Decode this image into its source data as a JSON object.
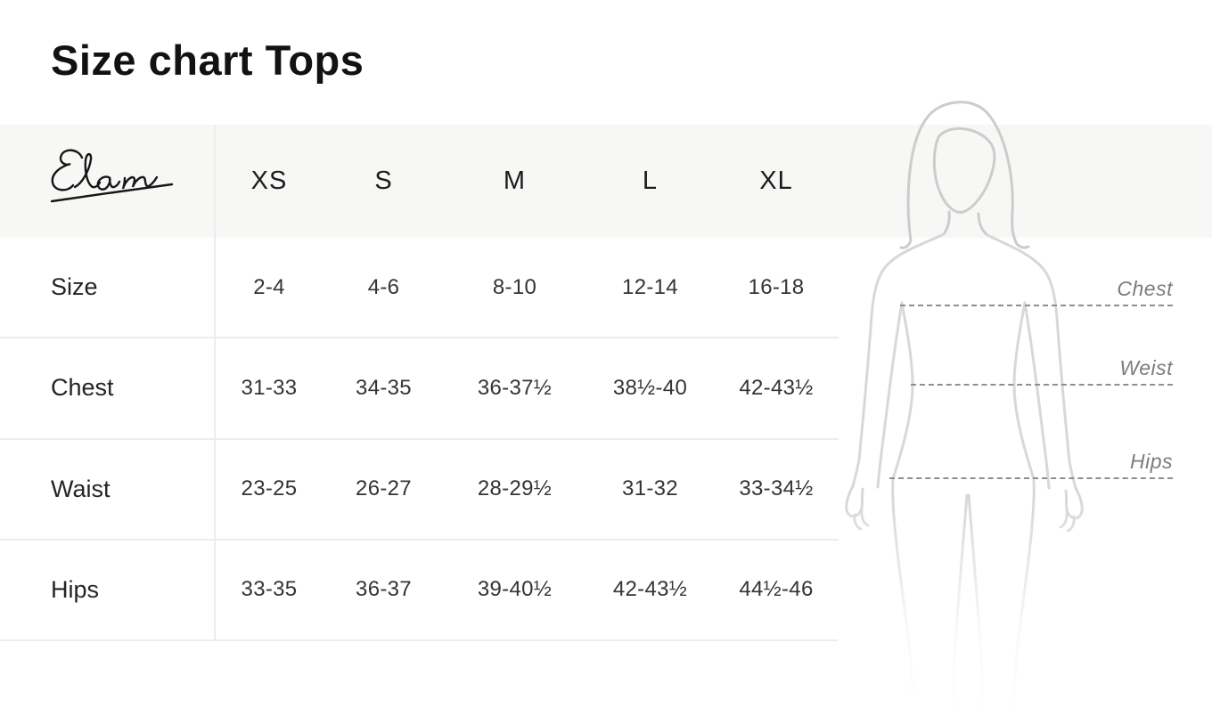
{
  "title": "Size chart Tops",
  "brand": {
    "name": "Elan"
  },
  "table": {
    "columns": [
      "XS",
      "S",
      "M",
      "L",
      "XL"
    ],
    "rows": [
      {
        "label": "Size",
        "values": [
          "2-4",
          "4-6",
          "8-10",
          "12-14",
          "16-18"
        ]
      },
      {
        "label": "Chest",
        "values": [
          "31-33",
          "34-35",
          "36-37½",
          "38½-40",
          "42-43½"
        ]
      },
      {
        "label": "Waist",
        "values": [
          "23-25",
          "26-27",
          "28-29½",
          "31-32",
          "33-34½"
        ]
      },
      {
        "label": "Hips",
        "values": [
          "33-35",
          "36-37",
          "39-40½",
          "42-43½",
          "44½-46"
        ]
      }
    ]
  },
  "figure": {
    "measurements": [
      {
        "label": "Chest"
      },
      {
        "label": "Weist"
      },
      {
        "label": "Hips"
      }
    ]
  },
  "colors": {
    "header_band": "#f7f7f6",
    "row_border": "#ececec",
    "figure_outline": "#d6d6d6",
    "dash_line": "#8f8f8f",
    "measure_label": "#7c7c7c",
    "text_dark": "#121212"
  }
}
